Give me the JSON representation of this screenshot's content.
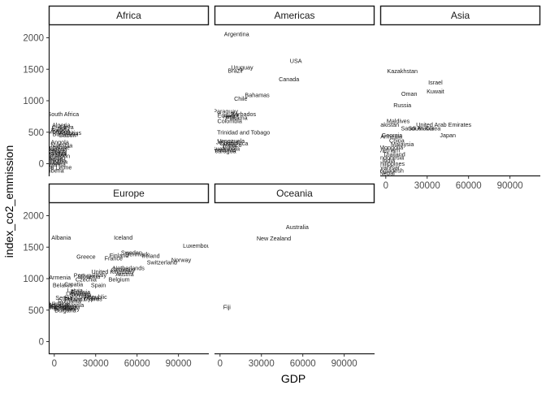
{
  "chart_data": {
    "type": "scatter",
    "label_marks": true,
    "xlabel": "GDP",
    "ylabel": "index_co2_emmission",
    "xlim": [
      -4000,
      112000
    ],
    "ylim": [
      -200,
      2200
    ],
    "xticks": [
      "0",
      "30000",
      "60000",
      "90000"
    ],
    "xtick_values": [
      0,
      30000,
      60000,
      90000
    ],
    "yticks": [
      "0",
      "500",
      "1000",
      "1500",
      "2000"
    ],
    "ytick_values": [
      0,
      500,
      1000,
      1500,
      2000
    ],
    "grid": false,
    "legend": "none",
    "facets": [
      {
        "name": "Africa",
        "points": [
          {
            "label": "South Africa",
            "x": 6500,
            "y": 790
          },
          {
            "label": "Algeria",
            "x": 5000,
            "y": 610
          },
          {
            "label": "Libya",
            "x": 9000,
            "y": 580
          },
          {
            "label": "Egypt",
            "x": 3500,
            "y": 560
          },
          {
            "label": "Tunisia",
            "x": 4500,
            "y": 530
          },
          {
            "label": "Morocco",
            "x": 3500,
            "y": 510
          },
          {
            "label": "Mauritius",
            "x": 11000,
            "y": 490
          },
          {
            "label": "Botswana",
            "x": 8000,
            "y": 470
          },
          {
            "label": "Gabon",
            "x": 9500,
            "y": 450
          },
          {
            "label": "Angola",
            "x": 4000,
            "y": 340
          },
          {
            "label": "Namibia",
            "x": 5500,
            "y": 290
          },
          {
            "label": "Zimbabwe",
            "x": 1500,
            "y": 260
          },
          {
            "label": "Nigeria",
            "x": 2500,
            "y": 230
          },
          {
            "label": "Kenya",
            "x": 1500,
            "y": 210
          },
          {
            "label": "Ghana",
            "x": 2200,
            "y": 190
          },
          {
            "label": "Senegal",
            "x": 1500,
            "y": 170
          },
          {
            "label": "Zambia",
            "x": 1700,
            "y": 150
          },
          {
            "label": "Cameroon",
            "x": 1500,
            "y": 120
          },
          {
            "label": "Sudan",
            "x": 1800,
            "y": 100
          },
          {
            "label": "Benin",
            "x": 1000,
            "y": 80
          },
          {
            "label": "Ethiopia",
            "x": 800,
            "y": 50
          },
          {
            "label": "Tanzania",
            "x": 1100,
            "y": 30
          },
          {
            "label": "Mali",
            "x": 900,
            "y": 10
          },
          {
            "label": "Uganda",
            "x": 800,
            "y": -10
          },
          {
            "label": "Sierra Leone",
            "x": 600,
            "y": -60
          },
          {
            "label": "Liberia",
            "x": 600,
            "y": -110
          }
        ]
      },
      {
        "name": "Americas",
        "points": [
          {
            "label": "Argentina",
            "x": 12000,
            "y": 2060
          },
          {
            "label": "USA",
            "x": 55000,
            "y": 1630
          },
          {
            "label": "Uruguay",
            "x": 16000,
            "y": 1530
          },
          {
            "label": "Brazil",
            "x": 11000,
            "y": 1480
          },
          {
            "label": "Canada",
            "x": 50000,
            "y": 1340
          },
          {
            "label": "Bahamas",
            "x": 27000,
            "y": 1090
          },
          {
            "label": "Chile",
            "x": 15000,
            "y": 1030
          },
          {
            "label": "Paraguay",
            "x": 4000,
            "y": 830
          },
          {
            "label": "Barbados",
            "x": 17000,
            "y": 790
          },
          {
            "label": "Ecuador",
            "x": 6000,
            "y": 770
          },
          {
            "label": "Peru",
            "x": 6500,
            "y": 750
          },
          {
            "label": "Panama",
            "x": 12000,
            "y": 730
          },
          {
            "label": "Colombia",
            "x": 7000,
            "y": 680
          },
          {
            "label": "Trinidad and Tobago",
            "x": 17000,
            "y": 500
          },
          {
            "label": "Venezuela",
            "x": 8000,
            "y": 360
          },
          {
            "label": "Jamaica",
            "x": 5000,
            "y": 340
          },
          {
            "label": "Costa Rica",
            "x": 10000,
            "y": 320
          },
          {
            "label": "Mexico",
            "x": 9000,
            "y": 300
          },
          {
            "label": "Cuba",
            "x": 7000,
            "y": 280
          },
          {
            "label": "Guatemala",
            "x": 4000,
            "y": 240
          },
          {
            "label": "Honduras",
            "x": 2500,
            "y": 220
          },
          {
            "label": "Nicaragua",
            "x": 2000,
            "y": 200
          }
        ]
      },
      {
        "name": "Asia",
        "points": [
          {
            "label": "Kazakhstan",
            "x": 12000,
            "y": 1470
          },
          {
            "label": "Israel",
            "x": 36000,
            "y": 1290
          },
          {
            "label": "Kuwait",
            "x": 36000,
            "y": 1150
          },
          {
            "label": "Oman",
            "x": 17000,
            "y": 1110
          },
          {
            "label": "Russia",
            "x": 12000,
            "y": 930
          },
          {
            "label": "Maldives",
            "x": 9000,
            "y": 680
          },
          {
            "label": "Pakistan",
            "x": 1500,
            "y": 620
          },
          {
            "label": "United Arab Emirates",
            "x": 42000,
            "y": 620
          },
          {
            "label": "Saudi Arabia",
            "x": 23000,
            "y": 560
          },
          {
            "label": "South Korea",
            "x": 28000,
            "y": 560
          },
          {
            "label": "Japan",
            "x": 45000,
            "y": 450
          },
          {
            "label": "Georgia",
            "x": 4500,
            "y": 450
          },
          {
            "label": "Armenia",
            "x": 4000,
            "y": 430
          },
          {
            "label": "China",
            "x": 8000,
            "y": 370
          },
          {
            "label": "Malaysia",
            "x": 12000,
            "y": 310
          },
          {
            "label": "Mongolia",
            "x": 4000,
            "y": 260
          },
          {
            "label": "Vietnam",
            "x": 2500,
            "y": 210
          },
          {
            "label": "Thailand",
            "x": 6000,
            "y": 150
          },
          {
            "label": "Indonesia",
            "x": 4000,
            "y": 100
          },
          {
            "label": "India",
            "x": 2000,
            "y": 50
          },
          {
            "label": "Philippines",
            "x": 3500,
            "y": 0
          },
          {
            "label": "Myanmar",
            "x": 1500,
            "y": -60
          },
          {
            "label": "Bangladesh",
            "x": 1800,
            "y": -110
          },
          {
            "label": "Nepal",
            "x": 1000,
            "y": -150
          }
        ]
      },
      {
        "name": "Europe",
        "points": [
          {
            "label": "Albania",
            "x": 5000,
            "y": 1650
          },
          {
            "label": "Iceland",
            "x": 50000,
            "y": 1650
          },
          {
            "label": "Luxembourg",
            "x": 105000,
            "y": 1520
          },
          {
            "label": "Sweden",
            "x": 56000,
            "y": 1410
          },
          {
            "label": "Denmark",
            "x": 60000,
            "y": 1390
          },
          {
            "label": "Finland",
            "x": 47000,
            "y": 1370
          },
          {
            "label": "Greece",
            "x": 23000,
            "y": 1350
          },
          {
            "label": "Ireland",
            "x": 70000,
            "y": 1360
          },
          {
            "label": "France",
            "x": 43000,
            "y": 1320
          },
          {
            "label": "Norway",
            "x": 92000,
            "y": 1300
          },
          {
            "label": "Switzerland",
            "x": 78000,
            "y": 1260
          },
          {
            "label": "Netherlands",
            "x": 54000,
            "y": 1170
          },
          {
            "label": "Germany",
            "x": 50000,
            "y": 1140
          },
          {
            "label": "United Kingdom",
            "x": 42000,
            "y": 1110
          },
          {
            "label": "Italy",
            "x": 34000,
            "y": 1060
          },
          {
            "label": "Austria",
            "x": 51000,
            "y": 1070
          },
          {
            "label": "Portugal",
            "x": 22000,
            "y": 1050
          },
          {
            "label": "Slovenia",
            "x": 25000,
            "y": 1030
          },
          {
            "label": "Armenia",
            "x": 4000,
            "y": 1020
          },
          {
            "label": "Belgium",
            "x": 47000,
            "y": 990
          },
          {
            "label": "Czechia",
            "x": 23000,
            "y": 990
          },
          {
            "label": "Spain",
            "x": 32000,
            "y": 900
          },
          {
            "label": "Belarus",
            "x": 6000,
            "y": 900
          },
          {
            "label": "Croatia",
            "x": 14000,
            "y": 910
          },
          {
            "label": "Latvia",
            "x": 15000,
            "y": 810
          },
          {
            "label": "Estonia",
            "x": 19000,
            "y": 790
          },
          {
            "label": "Lithuania",
            "x": 17000,
            "y": 760
          },
          {
            "label": "Slovakia",
            "x": 19000,
            "y": 740
          },
          {
            "label": "Serbia",
            "x": 7000,
            "y": 700
          },
          {
            "label": "Hungary",
            "x": 15000,
            "y": 690
          },
          {
            "label": "Poland",
            "x": 14000,
            "y": 670
          },
          {
            "label": "Romania",
            "x": 11000,
            "y": 640
          },
          {
            "label": "Malta",
            "x": 27000,
            "y": 690
          },
          {
            "label": "Cyprus",
            "x": 28000,
            "y": 680
          },
          {
            "label": "Republic",
            "x": 30000,
            "y": 710
          },
          {
            "label": "Ukraine",
            "x": 3500,
            "y": 600
          },
          {
            "label": "Moldova",
            "x": 2500,
            "y": 580
          },
          {
            "label": "Georgia",
            "x": 4500,
            "y": 560
          },
          {
            "label": "Russia",
            "x": 15000,
            "y": 580
          },
          {
            "label": "Montenegro",
            "x": 7000,
            "y": 560
          },
          {
            "label": "Macedonia",
            "x": 6000,
            "y": 540
          },
          {
            "label": "Bosnia",
            "x": 6000,
            "y": 520
          },
          {
            "label": "Bulgaria",
            "x": 8000,
            "y": 500
          },
          {
            "label": "Turkey",
            "x": 12000,
            "y": 520
          }
        ]
      },
      {
        "name": "Oceania",
        "points": [
          {
            "label": "Australia",
            "x": 56000,
            "y": 1820
          },
          {
            "label": "New Zealand",
            "x": 39000,
            "y": 1640
          },
          {
            "label": "Fiji",
            "x": 5000,
            "y": 550
          }
        ]
      }
    ]
  }
}
